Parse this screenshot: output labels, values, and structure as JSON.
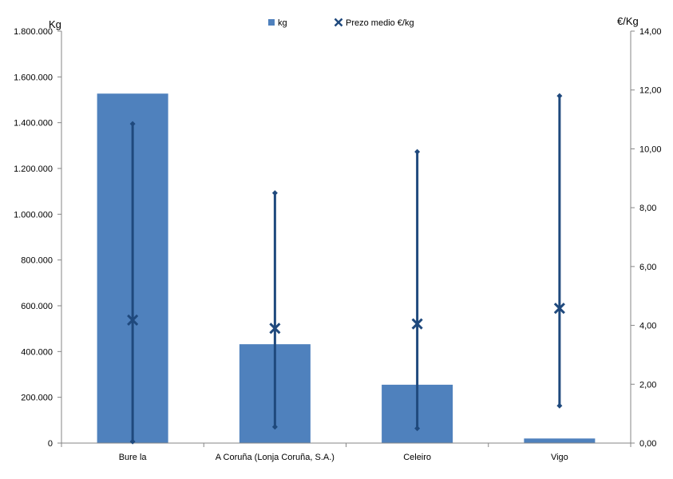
{
  "chart_data": {
    "type": "bar",
    "categories": [
      "Bure la",
      "A Coruña (Lonja Coruña, S.A.)",
      "Celeiro",
      "Vigo"
    ],
    "series": [
      {
        "name": "kg",
        "type": "bar",
        "axis": "left",
        "values": [
          1527000,
          432000,
          255000,
          20000
        ]
      },
      {
        "name": "Prezo medio €/kg",
        "type": "high-low-marker",
        "axis": "right",
        "values": [
          4.18,
          3.9,
          4.05,
          4.58
        ],
        "high": [
          10.85,
          8.5,
          9.9,
          11.8
        ],
        "low": [
          0.05,
          0.55,
          0.5,
          1.27
        ]
      }
    ],
    "ylabel": "Kg",
    "y2label": "€/Kg",
    "ylim": [
      0,
      1800000
    ],
    "y2lim": [
      0,
      14
    ],
    "yticks": [
      "0",
      "200.000",
      "400.000",
      "600.000",
      "800.000",
      "1.000.000",
      "1.200.000",
      "1.400.000",
      "1.600.000",
      "1.800.000"
    ],
    "y2ticks": [
      "0,00",
      "2,00",
      "4,00",
      "6,00",
      "8,00",
      "10,00",
      "12,00",
      "14,00"
    ],
    "legend": {
      "position": "top",
      "items": [
        {
          "label": "kg",
          "symbol": "square"
        },
        {
          "label": "Prezo medio €/kg",
          "symbol": "x"
        }
      ]
    },
    "grid": false
  },
  "colors": {
    "bar": "#4f81bd",
    "line": "#1f497d",
    "axis": "#868686"
  }
}
